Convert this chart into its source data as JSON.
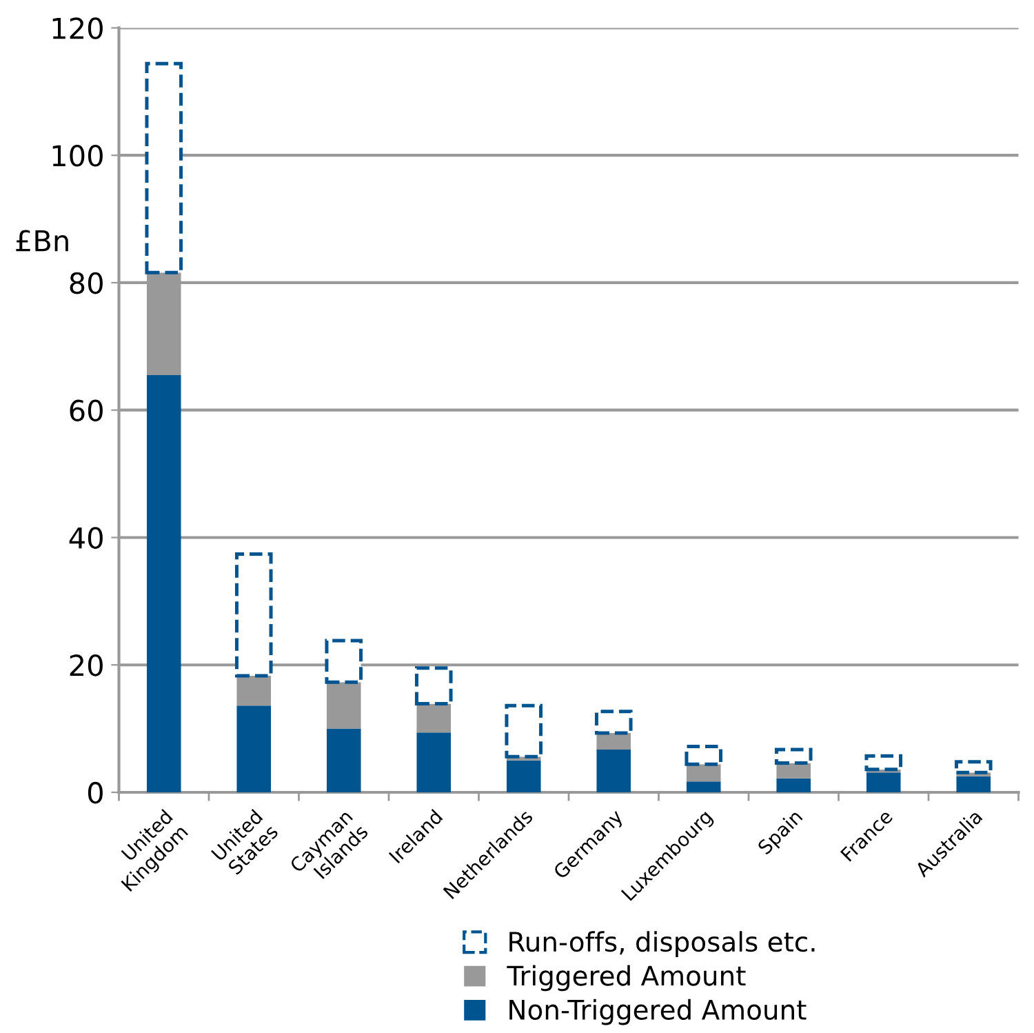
{
  "chart_data": {
    "type": "bar",
    "stacked": true,
    "ylabel": "£Bn",
    "categories": [
      "United\nKingdom",
      "United\nStates",
      "Cayman\nIslands",
      "Ireland",
      "Netherlands",
      "Germany",
      "Luxembourg",
      "Spain",
      "France",
      "Australia"
    ],
    "series": [
      {
        "name": "Non-Triggered Amount",
        "color": "#00548f",
        "values": [
          65.5,
          13.6,
          10.0,
          9.4,
          5.0,
          6.7,
          1.7,
          2.2,
          3.1,
          2.5
        ]
      },
      {
        "name": "Triggered Amount",
        "color": "#999999",
        "values": [
          16.1,
          4.7,
          7.3,
          4.5,
          0.6,
          2.6,
          2.7,
          2.4,
          0.5,
          0.6
        ]
      },
      {
        "name": "Run-offs, disposals etc.",
        "color": "#00548f",
        "line_style": "dashed",
        "values": [
          32.8,
          19.1,
          6.5,
          5.6,
          8.0,
          3.4,
          2.8,
          2.1,
          2.1,
          1.7
        ]
      }
    ],
    "ylim": [
      0,
      120
    ],
    "yticks": [
      0,
      20,
      40,
      60,
      80,
      100,
      120
    ],
    "grid": "y",
    "legend": "bottom"
  }
}
